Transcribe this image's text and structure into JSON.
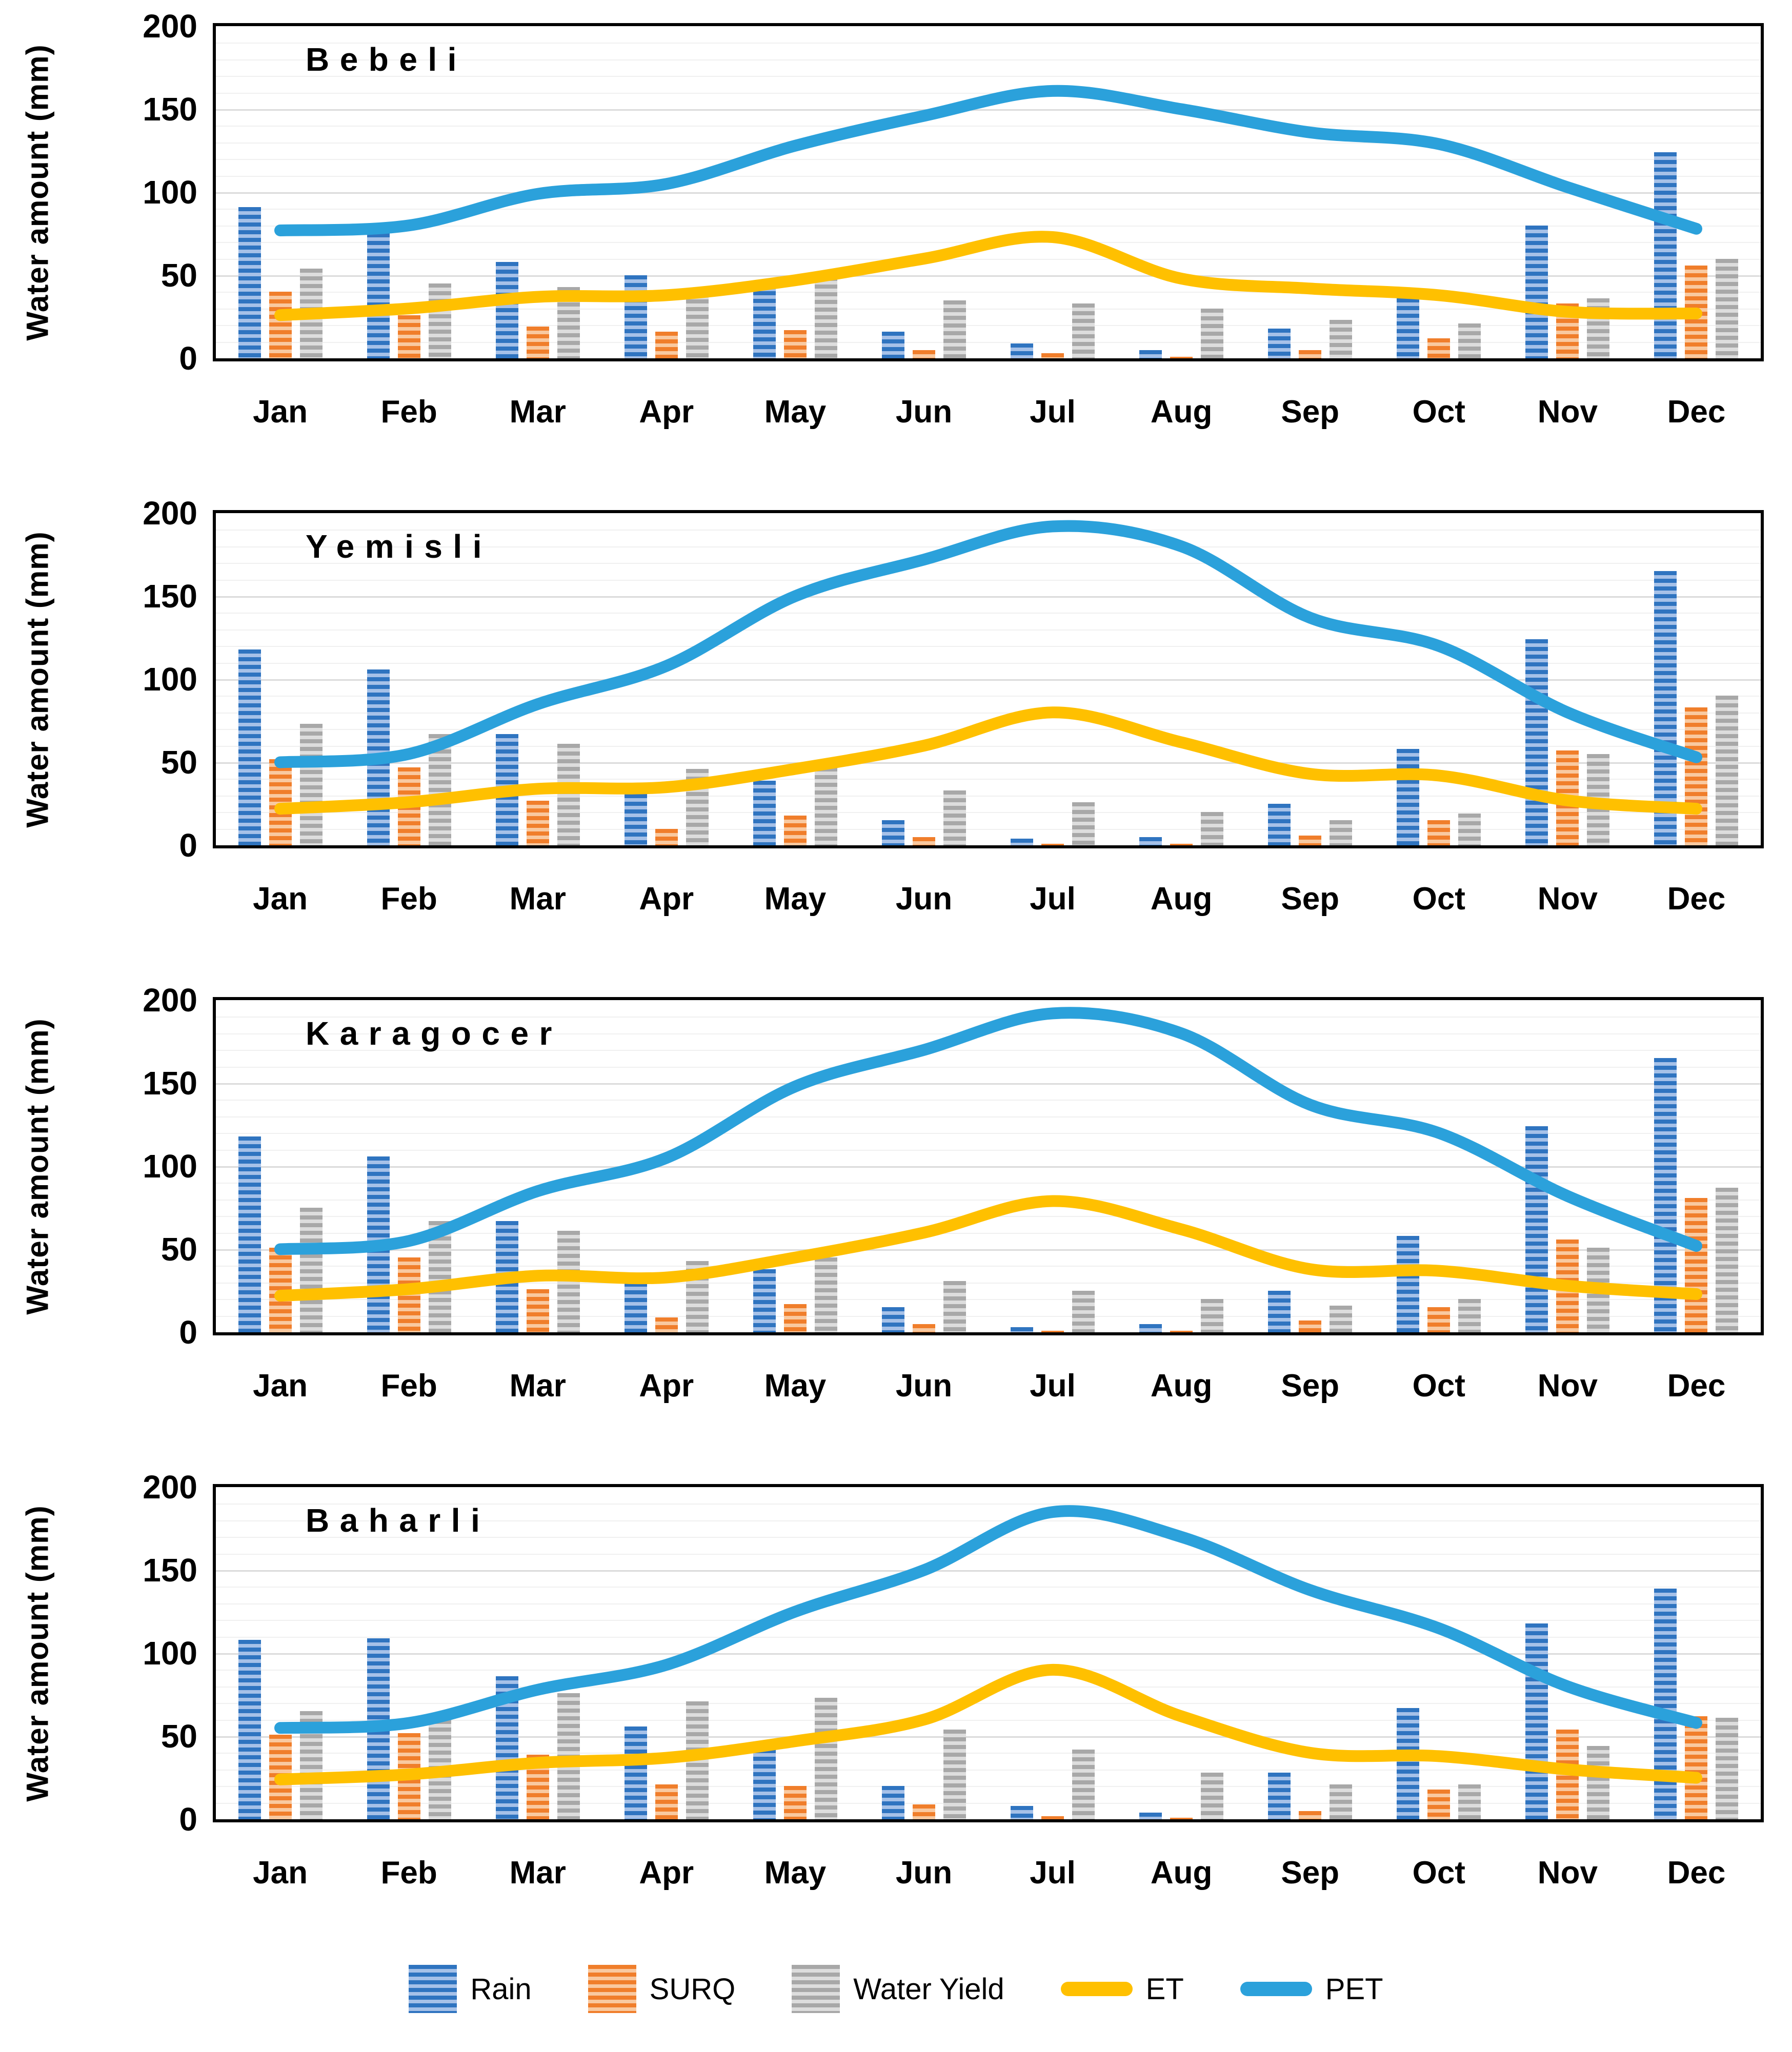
{
  "months": [
    "Jan",
    "Feb",
    "Mar",
    "Apr",
    "May",
    "Jun",
    "Jul",
    "Aug",
    "Sep",
    "Oct",
    "Nov",
    "Dec"
  ],
  "axis": {
    "y_ticks": [
      0,
      50,
      100,
      150,
      200
    ],
    "y_max": 200,
    "minor_step": 10,
    "major_step": 50
  },
  "colors": {
    "rain": "#2F74C0",
    "rain_light": "#A6C1E8",
    "surq": "#F07E2B",
    "surq_light": "#F9C9A0",
    "wy": "#A8A8A8",
    "wy_light": "#DDDDDD",
    "et": "#FFC000",
    "pet": "#2BA1DB",
    "grid_minor": "#F0F0F0",
    "grid_major": "#DBDBDB",
    "border": "#000000"
  },
  "legend": {
    "items": [
      {
        "label": "Rain",
        "swatch": "bar",
        "color_key": "rain"
      },
      {
        "label": "SURQ",
        "swatch": "bar",
        "color_key": "surq"
      },
      {
        "label": "Water Yield",
        "swatch": "bar",
        "color_key": "wy"
      },
      {
        "label": "ET",
        "swatch": "line",
        "color_key": "et"
      },
      {
        "label": "PET",
        "swatch": "line",
        "color_key": "pet"
      }
    ]
  },
  "chart_data": [
    {
      "type": "combo_bar_line",
      "title": "Bebeli",
      "y_label": "Water amount (mm)",
      "y_range": [
        0,
        200
      ],
      "grid": "minor horizontal every 10, major every 50",
      "legend_position": "bottom shared",
      "categories": [
        "Jan",
        "Feb",
        "Mar",
        "Apr",
        "May",
        "Jun",
        "Jul",
        "Aug",
        "Sep",
        "Oct",
        "Nov",
        "Dec"
      ],
      "series": [
        {
          "name": "Rain",
          "type": "bar",
          "values": [
            91,
            80,
            58,
            50,
            45,
            16,
            9,
            5,
            18,
            36,
            80,
            124
          ]
        },
        {
          "name": "SURQ",
          "type": "bar",
          "values": [
            40,
            26,
            19,
            16,
            17,
            5,
            3,
            1,
            5,
            12,
            33,
            56
          ]
        },
        {
          "name": "Water Yield",
          "type": "bar",
          "values": [
            54,
            45,
            43,
            40,
            49,
            35,
            33,
            30,
            23,
            21,
            36,
            60
          ]
        },
        {
          "name": "ET",
          "type": "line",
          "values": [
            26,
            30,
            37,
            38,
            47,
            60,
            73,
            48,
            42,
            38,
            28,
            27
          ]
        },
        {
          "name": "PET",
          "type": "line",
          "values": [
            77,
            80,
            99,
            105,
            128,
            146,
            161,
            150,
            136,
            129,
            103,
            78
          ]
        }
      ]
    },
    {
      "type": "combo_bar_line",
      "title": "Yemisli",
      "y_label": "Water amount (mm)",
      "y_range": [
        0,
        200
      ],
      "grid": "minor horizontal every 10, major every 50",
      "legend_position": "bottom shared",
      "categories": [
        "Jan",
        "Feb",
        "Mar",
        "Apr",
        "May",
        "Jun",
        "Jul",
        "Aug",
        "Sep",
        "Oct",
        "Nov",
        "Dec"
      ],
      "series": [
        {
          "name": "Rain",
          "type": "bar",
          "values": [
            118,
            106,
            67,
            31,
            39,
            15,
            4,
            5,
            25,
            58,
            124,
            165
          ]
        },
        {
          "name": "SURQ",
          "type": "bar",
          "values": [
            52,
            47,
            27,
            10,
            18,
            5,
            1,
            1,
            6,
            15,
            57,
            83
          ]
        },
        {
          "name": "Water Yield",
          "type": "bar",
          "values": [
            73,
            67,
            61,
            46,
            47,
            33,
            26,
            20,
            15,
            19,
            55,
            90
          ]
        },
        {
          "name": "ET",
          "type": "line",
          "values": [
            22,
            26,
            34,
            35,
            46,
            60,
            80,
            62,
            43,
            42,
            27,
            22
          ]
        },
        {
          "name": "PET",
          "type": "line",
          "values": [
            50,
            55,
            85,
            108,
            150,
            172,
            192,
            180,
            137,
            120,
            80,
            53
          ]
        }
      ]
    },
    {
      "type": "combo_bar_line",
      "title": "Karagocer",
      "y_label": "Water amount (mm)",
      "y_range": [
        0,
        200
      ],
      "grid": "minor horizontal every 10, major every 50",
      "legend_position": "bottom shared",
      "categories": [
        "Jan",
        "Feb",
        "Mar",
        "Apr",
        "May",
        "Jun",
        "Jul",
        "Aug",
        "Sep",
        "Oct",
        "Nov",
        "Dec"
      ],
      "series": [
        {
          "name": "Rain",
          "type": "bar",
          "values": [
            118,
            106,
            67,
            30,
            38,
            15,
            3,
            5,
            25,
            58,
            124,
            165
          ]
        },
        {
          "name": "SURQ",
          "type": "bar",
          "values": [
            51,
            45,
            26,
            9,
            17,
            5,
            1,
            1,
            7,
            15,
            56,
            81
          ]
        },
        {
          "name": "Water Yield",
          "type": "bar",
          "values": [
            75,
            67,
            61,
            43,
            45,
            31,
            25,
            20,
            16,
            20,
            51,
            87
          ]
        },
        {
          "name": "ET",
          "type": "line",
          "values": [
            22,
            26,
            34,
            33,
            45,
            60,
            79,
            62,
            38,
            37,
            28,
            23
          ]
        },
        {
          "name": "PET",
          "type": "line",
          "values": [
            50,
            55,
            85,
            105,
            148,
            170,
            192,
            180,
            137,
            120,
            82,
            52
          ]
        }
      ]
    },
    {
      "type": "combo_bar_line",
      "title": "Baharli",
      "y_label": "Water amount  (mm)",
      "y_range": [
        0,
        200
      ],
      "grid": "minor horizontal every 10, major every 50",
      "legend_position": "bottom shared",
      "categories": [
        "Jan",
        "Feb",
        "Mar",
        "Apr",
        "May",
        "Jun",
        "Jul",
        "Aug",
        "Sep",
        "Oct",
        "Nov",
        "Dec"
      ],
      "series": [
        {
          "name": "Rain",
          "type": "bar",
          "values": [
            108,
            109,
            86,
            56,
            47,
            20,
            8,
            4,
            28,
            67,
            118,
            139
          ]
        },
        {
          "name": "SURQ",
          "type": "bar",
          "values": [
            51,
            52,
            39,
            21,
            20,
            9,
            2,
            1,
            5,
            18,
            54,
            62
          ]
        },
        {
          "name": "Water Yield",
          "type": "bar",
          "values": [
            65,
            60,
            76,
            71,
            73,
            54,
            42,
            28,
            21,
            21,
            44,
            61
          ]
        },
        {
          "name": "ET",
          "type": "line",
          "values": [
            24,
            27,
            34,
            37,
            47,
            60,
            90,
            62,
            40,
            38,
            30,
            25
          ]
        },
        {
          "name": "PET",
          "type": "line",
          "values": [
            55,
            58,
            78,
            93,
            125,
            150,
            185,
            170,
            138,
            115,
            80,
            58
          ]
        }
      ]
    }
  ]
}
